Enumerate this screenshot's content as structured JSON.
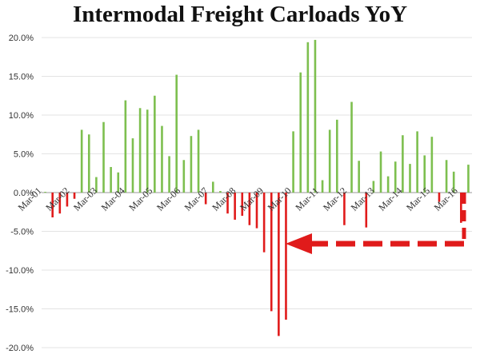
{
  "chart_data": {
    "type": "bar",
    "title": "Intermodal Freight Carloads YoY",
    "xlabel": "",
    "ylabel": "",
    "ylim": [
      -20,
      20
    ],
    "yticks": [
      20,
      15,
      10,
      5,
      0,
      -5,
      -10,
      -15,
      -20
    ],
    "ytick_labels": [
      "20.0%",
      "15.0%",
      "10.0%",
      "5.0%",
      "0.0%",
      "-5.0%",
      "-10.0%",
      "-15.0%",
      "-20.0%"
    ],
    "x_tick_labels": [
      "Mar-01",
      "Mar-02",
      "Mar-03",
      "Mar-04",
      "Mar-05",
      "Mar-06",
      "Mar-07",
      "Mar-08",
      "Mar-09",
      "Mar-10",
      "Mar-11",
      "Mar-12",
      "Mar-13",
      "Mar-14",
      "Mar-15",
      "Mar-16"
    ],
    "grid": true,
    "colors": {
      "positive": "#7dbf4f",
      "negative": "#e01b1b",
      "arrow": "#e01b1b"
    },
    "annotation": "dashed red arrow pointing left toward Mar-10",
    "series": [
      {
        "values": [
          0.1,
          -3.2,
          -2.7,
          -1.8,
          -0.8,
          8.1,
          7.5,
          2.0,
          9.1,
          3.3,
          2.6,
          11.9,
          7.0,
          10.9,
          10.7,
          12.5,
          8.6,
          4.7,
          15.2,
          4.2,
          7.3,
          8.1,
          -1.5,
          1.4,
          0.2,
          -2.7,
          -3.5,
          -3.0,
          -4.2,
          -4.6,
          -7.7,
          -15.3,
          -18.5,
          -16.4,
          7.9,
          15.5,
          19.4,
          19.7,
          1.6,
          8.1,
          9.4,
          -4.2,
          11.7,
          4.1,
          -4.5,
          1.5,
          5.3,
          2.1,
          4.0,
          7.4,
          3.7,
          7.9,
          4.8,
          7.2,
          -1.2,
          4.2,
          2.7,
          -3.9,
          3.6
        ]
      }
    ]
  }
}
